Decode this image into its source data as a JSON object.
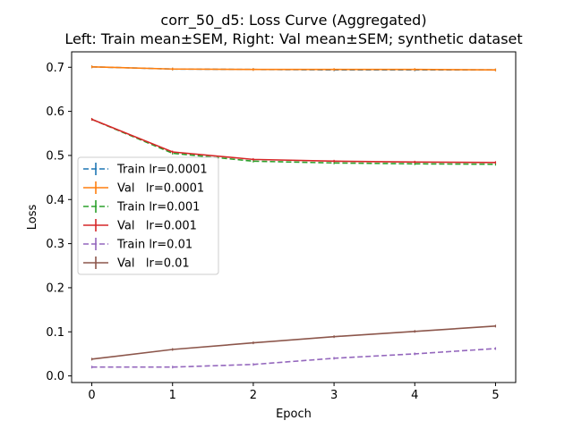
{
  "chart_data": {
    "type": "line",
    "title": "corr_50_d5: Loss Curve (Aggregated)",
    "subtitle": "Left: Train mean±SEM, Right: Val mean±SEM; synthetic dataset",
    "xlabel": "Epoch",
    "ylabel": "Loss",
    "x": [
      0,
      1,
      2,
      3,
      4,
      5
    ],
    "xlim": [
      -0.25,
      5.25
    ],
    "ylim": [
      -0.015,
      0.735
    ],
    "xticks": [
      "0",
      "1",
      "2",
      "3",
      "4",
      "5"
    ],
    "yticks": [
      "0.0",
      "0.1",
      "0.2",
      "0.3",
      "0.4",
      "0.5",
      "0.6",
      "0.7"
    ],
    "grid": false,
    "legend_position": "center-left",
    "series": [
      {
        "name": "Train lr=0.0001",
        "color": "#1f77b4",
        "dashed": true,
        "values": [
          0.701,
          0.696,
          0.695,
          0.694,
          0.694,
          0.694
        ]
      },
      {
        "name": "Val   lr=0.0001",
        "color": "#ff7f0e",
        "dashed": false,
        "values": [
          0.701,
          0.696,
          0.695,
          0.695,
          0.695,
          0.694
        ]
      },
      {
        "name": "Train lr=0.001",
        "color": "#2ca02c",
        "dashed": true,
        "values": [
          0.582,
          0.505,
          0.487,
          0.483,
          0.481,
          0.48
        ]
      },
      {
        "name": "Val   lr=0.001",
        "color": "#d62728",
        "dashed": false,
        "values": [
          0.582,
          0.508,
          0.491,
          0.487,
          0.485,
          0.484
        ]
      },
      {
        "name": "Train lr=0.01",
        "color": "#9467bd",
        "dashed": true,
        "values": [
          0.02,
          0.02,
          0.026,
          0.04,
          0.05,
          0.062
        ]
      },
      {
        "name": "Val   lr=0.01",
        "color": "#8c564b",
        "dashed": false,
        "values": [
          0.038,
          0.06,
          0.075,
          0.089,
          0.101,
          0.113
        ]
      }
    ]
  }
}
